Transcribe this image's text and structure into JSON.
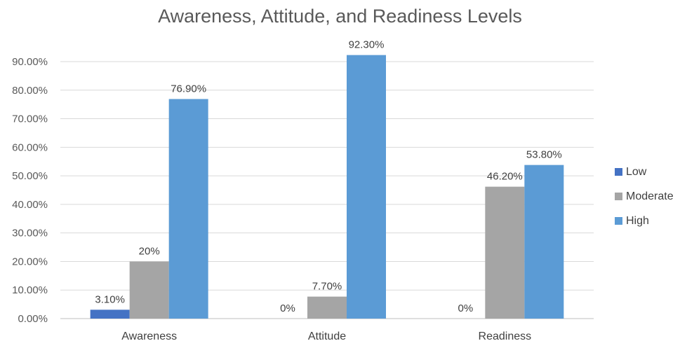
{
  "chart_data": {
    "type": "bar",
    "title": "Awareness, Attitude, and Readiness Levels",
    "categories": [
      "Awareness",
      "Attitude",
      "Readiness"
    ],
    "series": [
      {
        "name": "Low",
        "color": "#4472C4",
        "values": [
          3.1,
          0,
          0
        ],
        "labels": [
          "3.10%",
          "0%",
          "0%"
        ]
      },
      {
        "name": "Moderate",
        "color": "#A5A5A5",
        "values": [
          20,
          7.7,
          46.2
        ],
        "labels": [
          "20%",
          "7.70%",
          "46.20%"
        ]
      },
      {
        "name": "High",
        "color": "#5B9BD5",
        "values": [
          76.9,
          92.3,
          53.8
        ],
        "labels": [
          "76.90%",
          "92.30%",
          "53.80%"
        ]
      }
    ],
    "ylim": [
      0,
      90
    ],
    "yticks": [
      "0.00%",
      "10.00%",
      "20.00%",
      "30.00%",
      "40.00%",
      "50.00%",
      "60.00%",
      "70.00%",
      "80.00%",
      "90.00%"
    ],
    "grid": true,
    "legend_position": "right"
  }
}
